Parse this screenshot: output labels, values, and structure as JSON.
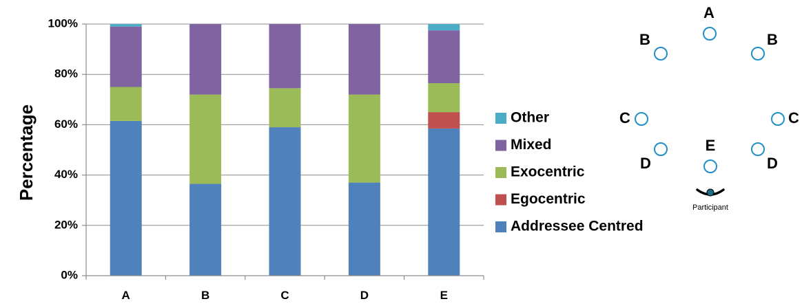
{
  "chart_data": {
    "type": "bar",
    "stacked": true,
    "categories": [
      "A",
      "B",
      "C",
      "D",
      "E"
    ],
    "series": [
      {
        "name": "Addressee Centred",
        "color": "#4F81BD",
        "values": [
          61.5,
          36.5,
          59,
          37,
          58.5
        ]
      },
      {
        "name": "Egocentric",
        "color": "#C0504D",
        "values": [
          0,
          0,
          0,
          0,
          6.5
        ]
      },
      {
        "name": "Exocentric",
        "color": "#9BBB59",
        "values": [
          13.5,
          35.5,
          15.5,
          35,
          11.5
        ]
      },
      {
        "name": "Mixed",
        "color": "#8064A2",
        "values": [
          24,
          28,
          25.5,
          28,
          21
        ]
      },
      {
        "name": "Other",
        "color": "#4BACC6",
        "values": [
          1,
          0,
          0,
          0,
          2.5
        ]
      }
    ],
    "ylabel": "Percentage",
    "xlabel": "",
    "ylim": [
      0,
      100
    ],
    "yticks": [
      "0%",
      "20%",
      "40%",
      "60%",
      "80%",
      "100%"
    ],
    "ytick_values": [
      0,
      20,
      40,
      60,
      80,
      100
    ],
    "grid": true,
    "legend_placement": "right",
    "legend_order": [
      "Other",
      "Mixed",
      "Exocentric",
      "Egocentric",
      "Addressee Centred"
    ]
  },
  "diagram": {
    "positions": [
      {
        "label": "A",
        "side": "top"
      },
      {
        "label": "B",
        "side": "left"
      },
      {
        "label": "B",
        "side": "right"
      },
      {
        "label": "C",
        "side": "left"
      },
      {
        "label": "C",
        "side": "right"
      },
      {
        "label": "D",
        "side": "left"
      },
      {
        "label": "D",
        "side": "right"
      },
      {
        "label": "E",
        "side": "center"
      }
    ],
    "participant_label": "Participant",
    "marker_color": "#1F8FC9",
    "participant_color": "#1B6E86"
  }
}
